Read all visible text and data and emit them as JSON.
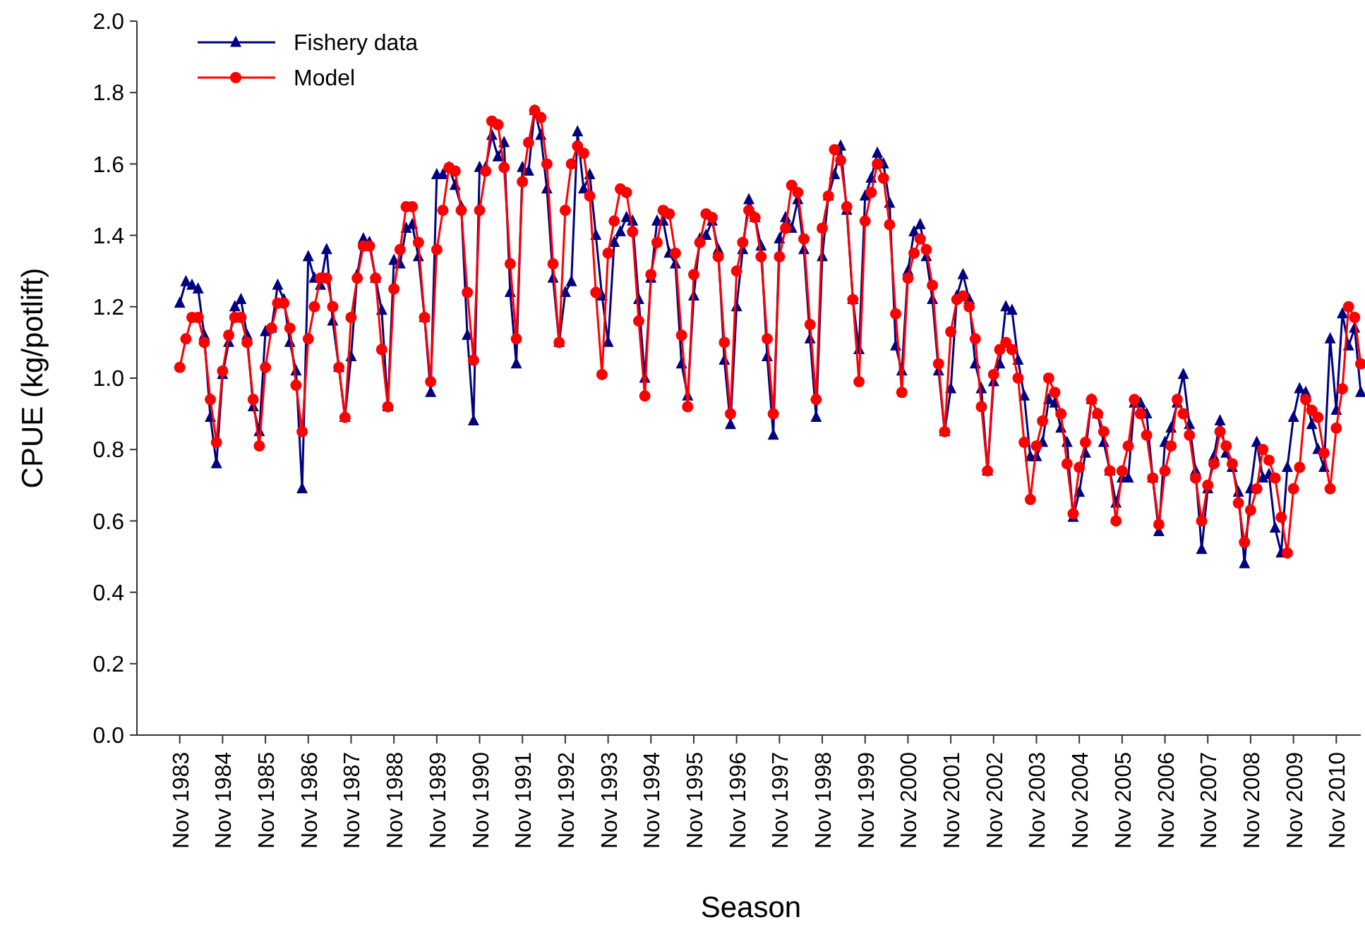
{
  "chart_data": {
    "type": "line",
    "xlabel": "Season",
    "ylabel": "CPUE (kg/potlift)",
    "legend": "top left",
    "grid": false,
    "ylim": [
      0,
      2
    ],
    "yticks": [
      {
        "value": 0,
        "label": "0.0"
      },
      {
        "value": 0.2,
        "label": "0.2"
      },
      {
        "value": 0.4,
        "label": "0.4"
      },
      {
        "value": 0.6,
        "label": "0.6"
      },
      {
        "value": 0.8,
        "label": "0.8"
      },
      {
        "value": 1,
        "label": "1.0"
      },
      {
        "value": 1.2,
        "label": "1.2"
      },
      {
        "value": 1.4,
        "label": "1.4"
      },
      {
        "value": 1.6,
        "label": "1.6"
      },
      {
        "value": 1.8,
        "label": "1.8"
      },
      {
        "value": 2,
        "label": "2.0"
      }
    ],
    "categories": [
      null,
      null,
      null,
      null,
      null,
      null,
      null,
      "Nov 1983",
      null,
      null,
      null,
      null,
      null,
      null,
      "Nov 1984",
      null,
      null,
      null,
      null,
      null,
      null,
      "Nov 1985",
      null,
      null,
      null,
      null,
      null,
      null,
      "Nov 1986",
      null,
      null,
      null,
      null,
      null,
      null,
      "Nov 1987",
      null,
      null,
      null,
      null,
      null,
      null,
      "Nov 1988",
      null,
      null,
      null,
      null,
      null,
      null,
      "Nov 1989",
      null,
      null,
      null,
      null,
      null,
      null,
      "Nov 1990",
      null,
      null,
      null,
      null,
      null,
      null,
      "Nov 1991",
      null,
      null,
      null,
      null,
      null,
      null,
      "Nov 1992",
      null,
      null,
      null,
      null,
      null,
      null,
      "Nov 1993",
      null,
      null,
      null,
      null,
      null,
      null,
      "Nov 1994",
      null,
      null,
      null,
      null,
      null,
      null,
      "Nov 1995",
      null,
      null,
      null,
      null,
      null,
      null,
      "Nov 1996",
      null,
      null,
      null,
      null,
      null,
      null,
      "Nov 1997",
      null,
      null,
      null,
      null,
      null,
      null,
      "Nov 1998",
      null,
      null,
      null,
      null,
      null,
      null,
      "Nov 1999",
      null,
      null,
      null,
      null,
      null,
      null,
      "Nov 2000",
      null,
      null,
      null,
      null,
      null,
      null,
      "Nov 2001",
      null,
      null,
      null,
      null,
      null,
      null,
      "Nov 2002",
      null,
      null,
      null,
      null,
      null,
      null,
      "Nov 2003",
      null,
      null,
      null,
      null,
      null,
      null,
      "Nov 2004",
      null,
      null,
      null,
      null,
      null,
      null,
      "Nov 2005",
      null,
      null,
      null,
      null,
      null,
      null,
      "Nov 2006",
      null,
      null,
      null,
      null,
      null,
      null,
      "Nov 2007",
      null,
      null,
      null,
      null,
      null,
      null,
      "Nov 2008",
      null,
      null,
      null,
      null,
      null,
      null,
      "Nov 2009",
      null,
      null,
      null,
      null,
      null,
      null,
      "Nov 2010",
      null,
      null,
      null,
      null
    ],
    "series": [
      {
        "name": "Fishery data",
        "color": "#000080",
        "marker": "triangle",
        "line_style": "solid",
        "values": [
          null,
          null,
          null,
          null,
          null,
          null,
          null,
          1.21,
          1.27,
          1.26,
          1.25,
          1.12,
          0.89,
          0.76,
          1.01,
          1.1,
          1.2,
          1.22,
          1.12,
          0.92,
          0.85,
          1.13,
          1.14,
          1.26,
          1.22,
          1.1,
          1.02,
          0.69,
          1.34,
          1.28,
          1.26,
          1.36,
          1.16,
          1.03,
          0.89,
          1.06,
          1.29,
          1.39,
          1.38,
          1.28,
          1.19,
          0.92,
          1.33,
          1.32,
          1.42,
          1.43,
          1.34,
          1.17,
          0.96,
          1.57,
          1.57,
          1.59,
          1.54,
          1.48,
          1.12,
          0.88,
          1.59,
          1.59,
          1.68,
          1.62,
          1.66,
          1.24,
          1.04,
          1.59,
          1.58,
          1.75,
          1.68,
          1.53,
          1.28,
          1.1,
          1.24,
          1.27,
          1.69,
          1.53,
          1.57,
          1.4,
          1.23,
          1.1,
          1.38,
          1.41,
          1.45,
          1.44,
          1.22,
          1.0,
          1.28,
          1.44,
          1.44,
          1.35,
          1.32,
          1.04,
          0.95,
          1.23,
          1.39,
          1.4,
          1.44,
          1.36,
          1.05,
          0.87,
          1.2,
          1.36,
          1.5,
          1.45,
          1.37,
          1.06,
          0.84,
          1.39,
          1.45,
          1.42,
          1.5,
          1.36,
          1.11,
          0.89,
          1.34,
          1.51,
          1.57,
          1.65,
          1.47,
          1.22,
          1.08,
          1.51,
          1.56,
          1.63,
          1.6,
          1.49,
          1.09,
          1.02,
          1.3,
          1.41,
          1.43,
          1.34,
          1.22,
          1.02,
          0.85,
          0.97,
          1.23,
          1.29,
          1.22,
          1.04,
          0.97,
          0.74,
          0.99,
          1.04,
          1.2,
          1.19,
          1.05,
          0.95,
          0.78,
          0.78,
          0.82,
          0.94,
          0.93,
          0.86,
          0.82,
          0.61,
          0.68,
          0.79,
          0.94,
          0.9,
          0.82,
          0.74,
          0.65,
          0.72,
          0.72,
          0.93,
          0.93,
          0.9,
          0.72,
          0.57,
          0.82,
          0.86,
          0.93,
          1.01,
          0.87,
          0.74,
          0.52,
          0.69,
          0.78,
          0.88,
          0.79,
          0.75,
          0.68,
          0.48,
          0.69,
          0.82,
          0.72,
          0.73,
          0.58,
          0.51,
          0.75,
          0.89,
          0.97,
          0.96,
          0.87,
          0.8,
          0.75,
          1.11,
          0.91,
          1.18,
          1.09,
          1.14,
          0.96
        ]
      },
      {
        "name": "Model",
        "color": "#ff0000",
        "marker": "circle",
        "line_style": "solid",
        "values": [
          null,
          null,
          null,
          null,
          null,
          null,
          null,
          1.03,
          1.11,
          1.17,
          1.17,
          1.1,
          0.94,
          0.82,
          1.02,
          1.12,
          1.17,
          1.17,
          1.1,
          0.94,
          0.81,
          1.03,
          1.14,
          1.21,
          1.21,
          1.14,
          0.98,
          0.85,
          1.11,
          1.2,
          1.28,
          1.28,
          1.2,
          1.03,
          0.89,
          1.17,
          1.28,
          1.37,
          1.37,
          1.28,
          1.08,
          0.92,
          1.25,
          1.36,
          1.48,
          1.48,
          1.38,
          1.17,
          0.99,
          1.36,
          1.47,
          1.59,
          1.58,
          1.47,
          1.24,
          1.05,
          1.47,
          1.58,
          1.72,
          1.71,
          1.59,
          1.32,
          1.11,
          1.55,
          1.66,
          1.75,
          1.73,
          1.6,
          1.32,
          1.1,
          1.47,
          1.6,
          1.65,
          1.63,
          1.51,
          1.24,
          1.01,
          1.35,
          1.44,
          1.53,
          1.52,
          1.41,
          1.16,
          0.95,
          1.29,
          1.38,
          1.47,
          1.46,
          1.35,
          1.12,
          0.92,
          1.29,
          1.38,
          1.46,
          1.45,
          1.34,
          1.1,
          0.9,
          1.3,
          1.38,
          1.47,
          1.45,
          1.34,
          1.11,
          0.9,
          1.34,
          1.42,
          1.54,
          1.52,
          1.39,
          1.15,
          0.94,
          1.42,
          1.51,
          1.64,
          1.61,
          1.48,
          1.22,
          0.99,
          1.44,
          1.52,
          1.6,
          1.56,
          1.43,
          1.18,
          0.96,
          1.28,
          1.35,
          1.39,
          1.36,
          1.26,
          1.04,
          0.85,
          1.13,
          1.22,
          1.23,
          1.2,
          1.11,
          0.92,
          0.74,
          1.01,
          1.08,
          1.1,
          1.08,
          1.0,
          0.82,
          0.66,
          0.81,
          0.88,
          1.0,
          0.96,
          0.9,
          0.76,
          0.62,
          0.75,
          0.82,
          0.94,
          0.9,
          0.85,
          0.74,
          0.6,
          0.74,
          0.81,
          0.94,
          0.9,
          0.84,
          0.72,
          0.59,
          0.74,
          0.81,
          0.94,
          0.9,
          0.84,
          0.72,
          0.6,
          0.7,
          0.76,
          0.85,
          0.81,
          0.76,
          0.65,
          0.54,
          0.63,
          0.69,
          0.8,
          0.77,
          0.72,
          0.61,
          0.51,
          0.69,
          0.75,
          0.94,
          0.91,
          0.89,
          0.79,
          0.69,
          0.86,
          0.97,
          1.2,
          1.17,
          1.04
        ]
      }
    ]
  }
}
